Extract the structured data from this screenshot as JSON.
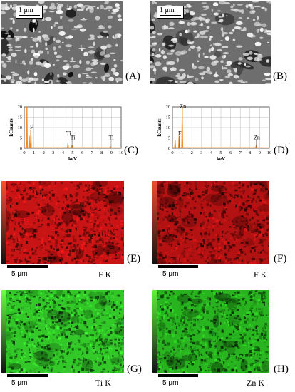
{
  "panels": {
    "A": {
      "label": "(A)",
      "scale_label": "1 μm"
    },
    "B": {
      "label": "(B)",
      "scale_label": "1 μm"
    },
    "C": {
      "label": "(C)"
    },
    "D": {
      "label": "(D)"
    },
    "E": {
      "label": "(E)",
      "scale_label": "5 μm",
      "element": "F K",
      "map_color": "#c81414"
    },
    "F": {
      "label": "(F)",
      "scale_label": "5 μm",
      "element": "F K",
      "map_color": "#b41212"
    },
    "G": {
      "label": "(G)",
      "scale_label": "5 μm",
      "element": "Ti K",
      "map_color": "#32c828"
    },
    "H": {
      "label": "(H)",
      "scale_label": "5 μm",
      "element": "Zn K",
      "map_color": "#28b41e"
    }
  },
  "chart_data": [
    {
      "type": "line",
      "panel": "C",
      "xlabel": "keV",
      "ylabel": "kCounts",
      "xlim": [
        0,
        10
      ],
      "ylim": [
        0,
        20
      ],
      "x_ticks": [
        0,
        1,
        2,
        3,
        4,
        5,
        6,
        7,
        8,
        9,
        10
      ],
      "y_ticks": [
        0,
        5,
        10,
        15,
        20
      ],
      "grid": true,
      "peaks": [
        {
          "x": 0.28,
          "y": 20
        },
        {
          "x": 0.52,
          "y": 6
        },
        {
          "x": 0.68,
          "y": 9
        },
        {
          "x": 4.51,
          "y": 2.5
        },
        {
          "x": 4.93,
          "y": 1.5
        },
        {
          "x": 8.9,
          "y": 0.8
        }
      ],
      "annotations": [
        {
          "text": "F",
          "x": 0.68,
          "y": 9
        },
        {
          "text": "Ti",
          "x": 4.51,
          "y": 6
        },
        {
          "text": "Ti",
          "x": 4.93,
          "y": 4
        },
        {
          "text": "Ti",
          "x": 8.9,
          "y": 4
        }
      ],
      "color": "#f28c28"
    },
    {
      "type": "line",
      "panel": "D",
      "xlabel": "keV",
      "ylabel": "kCounts",
      "xlim": [
        0,
        10
      ],
      "ylim": [
        0,
        20
      ],
      "x_ticks": [
        0,
        1,
        2,
        3,
        4,
        5,
        6,
        7,
        8,
        9,
        10
      ],
      "y_ticks": [
        0,
        5,
        10,
        15,
        20
      ],
      "grid": true,
      "peaks": [
        {
          "x": 0.28,
          "y": 4
        },
        {
          "x": 0.68,
          "y": 6
        },
        {
          "x": 1.01,
          "y": 20
        },
        {
          "x": 8.64,
          "y": 1.2
        }
      ],
      "annotations": [
        {
          "text": "Zn",
          "x": 1.01,
          "y": 19
        },
        {
          "text": "F",
          "x": 0.68,
          "y": 6
        },
        {
          "text": "Zn",
          "x": 8.64,
          "y": 4
        }
      ],
      "color": "#f28c28"
    }
  ]
}
